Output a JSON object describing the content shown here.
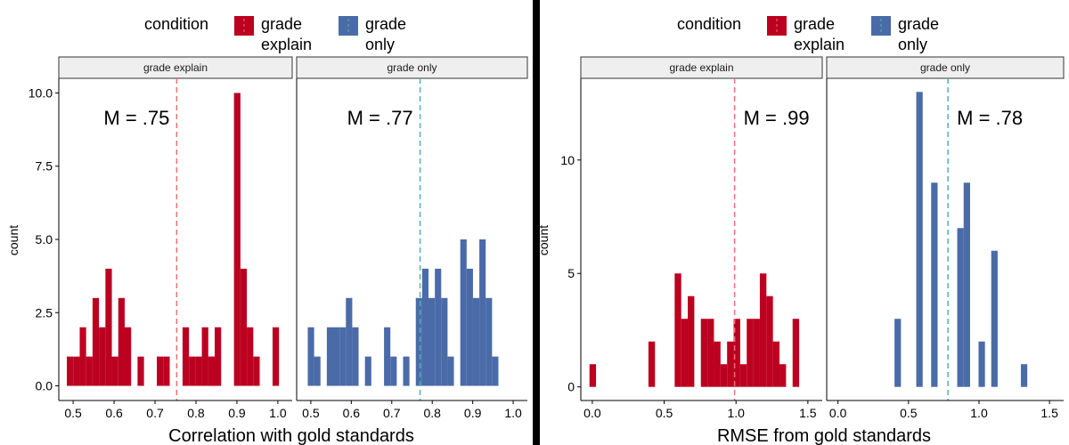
{
  "colors": {
    "grade_explain": "#BC0020",
    "grade_only": "#4A6BA8",
    "mean_explain": "#F07070",
    "mean_only": "#50B4B4",
    "strip_fill": "#EFEFEF"
  },
  "chart_data": [
    {
      "type": "histogram",
      "xlabel": "Correlation with gold standards",
      "ylabel": "count",
      "legend_title": "condition",
      "legend_position": "top",
      "xlim": [
        0.465,
        1.035
      ],
      "ylim": [
        -0.5,
        10.5
      ],
      "xticks": [
        {
          "value": 0.5,
          "label": "0.5"
        },
        {
          "value": 0.6,
          "label": "0.6"
        },
        {
          "value": 0.7,
          "label": "0.7"
        },
        {
          "value": 0.8,
          "label": "0.8"
        },
        {
          "value": 0.9,
          "label": "0.9"
        },
        {
          "value": 1.0,
          "label": "1.0"
        }
      ],
      "yticks": [
        {
          "value": 0,
          "label": "0.0"
        },
        {
          "value": 2.5,
          "label": "2.5"
        },
        {
          "value": 5,
          "label": "5.0"
        },
        {
          "value": 7.5,
          "label": "7.5"
        },
        {
          "value": 10,
          "label": "10.0"
        }
      ],
      "bin_width": 0.0157,
      "panels": [
        {
          "strip": "grade explain",
          "series": "grade_explain",
          "mean": 0.753,
          "mean_label": "M = .75",
          "mean_label_side": "left",
          "bars": [
            {
              "x": 0.4925,
              "count": 1
            },
            {
              "x": 0.5082,
              "count": 1
            },
            {
              "x": 0.5239,
              "count": 2
            },
            {
              "x": 0.5396,
              "count": 1
            },
            {
              "x": 0.5553,
              "count": 3
            },
            {
              "x": 0.571,
              "count": 2
            },
            {
              "x": 0.5867,
              "count": 4
            },
            {
              "x": 0.6024,
              "count": 1
            },
            {
              "x": 0.6181,
              "count": 3
            },
            {
              "x": 0.6338,
              "count": 2
            },
            {
              "x": 0.6652,
              "count": 1
            },
            {
              "x": 0.7123,
              "count": 1
            },
            {
              "x": 0.728,
              "count": 1
            },
            {
              "x": 0.7751,
              "count": 2
            },
            {
              "x": 0.7908,
              "count": 1
            },
            {
              "x": 0.8065,
              "count": 1
            },
            {
              "x": 0.8222,
              "count": 2
            },
            {
              "x": 0.8379,
              "count": 1
            },
            {
              "x": 0.8379,
              "count": 1
            },
            {
              "x": 0.8536,
              "count": 2
            },
            {
              "x": 0.9007,
              "count": 10
            },
            {
              "x": 0.9164,
              "count": 4
            },
            {
              "x": 0.9321,
              "count": 2
            },
            {
              "x": 0.9478,
              "count": 1
            },
            {
              "x": 0.9949,
              "count": 2
            }
          ]
        },
        {
          "strip": "grade only",
          "series": "grade_only",
          "mean": 0.77,
          "mean_label": "M = .77",
          "mean_label_side": "left",
          "bars": [
            {
              "x": 0.5003,
              "count": 2
            },
            {
              "x": 0.516,
              "count": 1
            },
            {
              "x": 0.5474,
              "count": 2
            },
            {
              "x": 0.5631,
              "count": 2
            },
            {
              "x": 0.5788,
              "count": 2
            },
            {
              "x": 0.5945,
              "count": 3
            },
            {
              "x": 0.6102,
              "count": 2
            },
            {
              "x": 0.6416,
              "count": 1
            },
            {
              "x": 0.6887,
              "count": 2
            },
            {
              "x": 0.7044,
              "count": 1
            },
            {
              "x": 0.7358,
              "count": 1
            },
            {
              "x": 0.7672,
              "count": 3
            },
            {
              "x": 0.7829,
              "count": 4
            },
            {
              "x": 0.7986,
              "count": 3
            },
            {
              "x": 0.8143,
              "count": 4
            },
            {
              "x": 0.83,
              "count": 3
            },
            {
              "x": 0.8457,
              "count": 1
            },
            {
              "x": 0.8771,
              "count": 5
            },
            {
              "x": 0.8928,
              "count": 4
            },
            {
              "x": 0.9085,
              "count": 3
            },
            {
              "x": 0.9242,
              "count": 5
            },
            {
              "x": 0.9399,
              "count": 3
            },
            {
              "x": 0.9556,
              "count": 1
            }
          ]
        }
      ]
    },
    {
      "type": "histogram",
      "xlabel": "RMSE from gold standards",
      "ylabel": "count",
      "legend_title": "condition",
      "legend_position": "top",
      "xlim": [
        -0.08,
        1.6
      ],
      "ylim": [
        -0.6,
        13.6
      ],
      "xticks": [
        {
          "value": 0.0,
          "label": "0.0"
        },
        {
          "value": 0.5,
          "label": "0.5"
        },
        {
          "value": 1.0,
          "label": "1.0"
        },
        {
          "value": 1.5,
          "label": "1.5"
        }
      ],
      "yticks": [
        {
          "value": 0,
          "label": "0"
        },
        {
          "value": 5,
          "label": "5"
        },
        {
          "value": 10,
          "label": "10"
        }
      ],
      "bin_width": 0.0456,
      "panels": [
        {
          "strip": "grade explain",
          "series": "grade_explain",
          "mean": 0.99,
          "mean_label": "M = .99",
          "mean_label_side": "right",
          "bars": [
            {
              "x": 0.003,
              "count": 1
            },
            {
              "x": 0.4134,
              "count": 2
            },
            {
              "x": 0.5958,
              "count": 5
            },
            {
              "x": 0.6414,
              "count": 3
            },
            {
              "x": 0.687,
              "count": 4
            },
            {
              "x": 0.7782,
              "count": 3
            },
            {
              "x": 0.8238,
              "count": 3
            },
            {
              "x": 0.8694,
              "count": 2
            },
            {
              "x": 0.915,
              "count": 1
            },
            {
              "x": 0.9606,
              "count": 2
            },
            {
              "x": 1.0062,
              "count": 3
            },
            {
              "x": 1.0518,
              "count": 1
            },
            {
              "x": 1.0974,
              "count": 3
            },
            {
              "x": 1.143,
              "count": 3
            },
            {
              "x": 1.1886,
              "count": 5
            },
            {
              "x": 1.2342,
              "count": 4
            },
            {
              "x": 1.2798,
              "count": 2
            },
            {
              "x": 1.3254,
              "count": 1
            },
            {
              "x": 1.4166,
              "count": 3
            }
          ]
        },
        {
          "strip": "grade only",
          "series": "grade_only",
          "mean": 0.78,
          "mean_label": "M = .78",
          "mean_label_side": "right",
          "bars": [
            {
              "x": 0.4236,
              "count": 3
            },
            {
              "x": 0.5778,
              "count": 13
            },
            {
              "x": 0.6834,
              "count": 9
            },
            {
              "x": 0.8682,
              "count": 7
            },
            {
              "x": 0.9138,
              "count": 9
            },
            {
              "x": 1.0194,
              "count": 2
            },
            {
              "x": 1.1094,
              "count": 6
            },
            {
              "x": 1.3194,
              "count": 1
            }
          ]
        }
      ]
    }
  ],
  "legend": {
    "items": [
      {
        "series": "grade_explain",
        "line1": "grade",
        "line2": "explain"
      },
      {
        "series": "grade_only",
        "line1": "grade",
        "line2": "only"
      }
    ]
  }
}
